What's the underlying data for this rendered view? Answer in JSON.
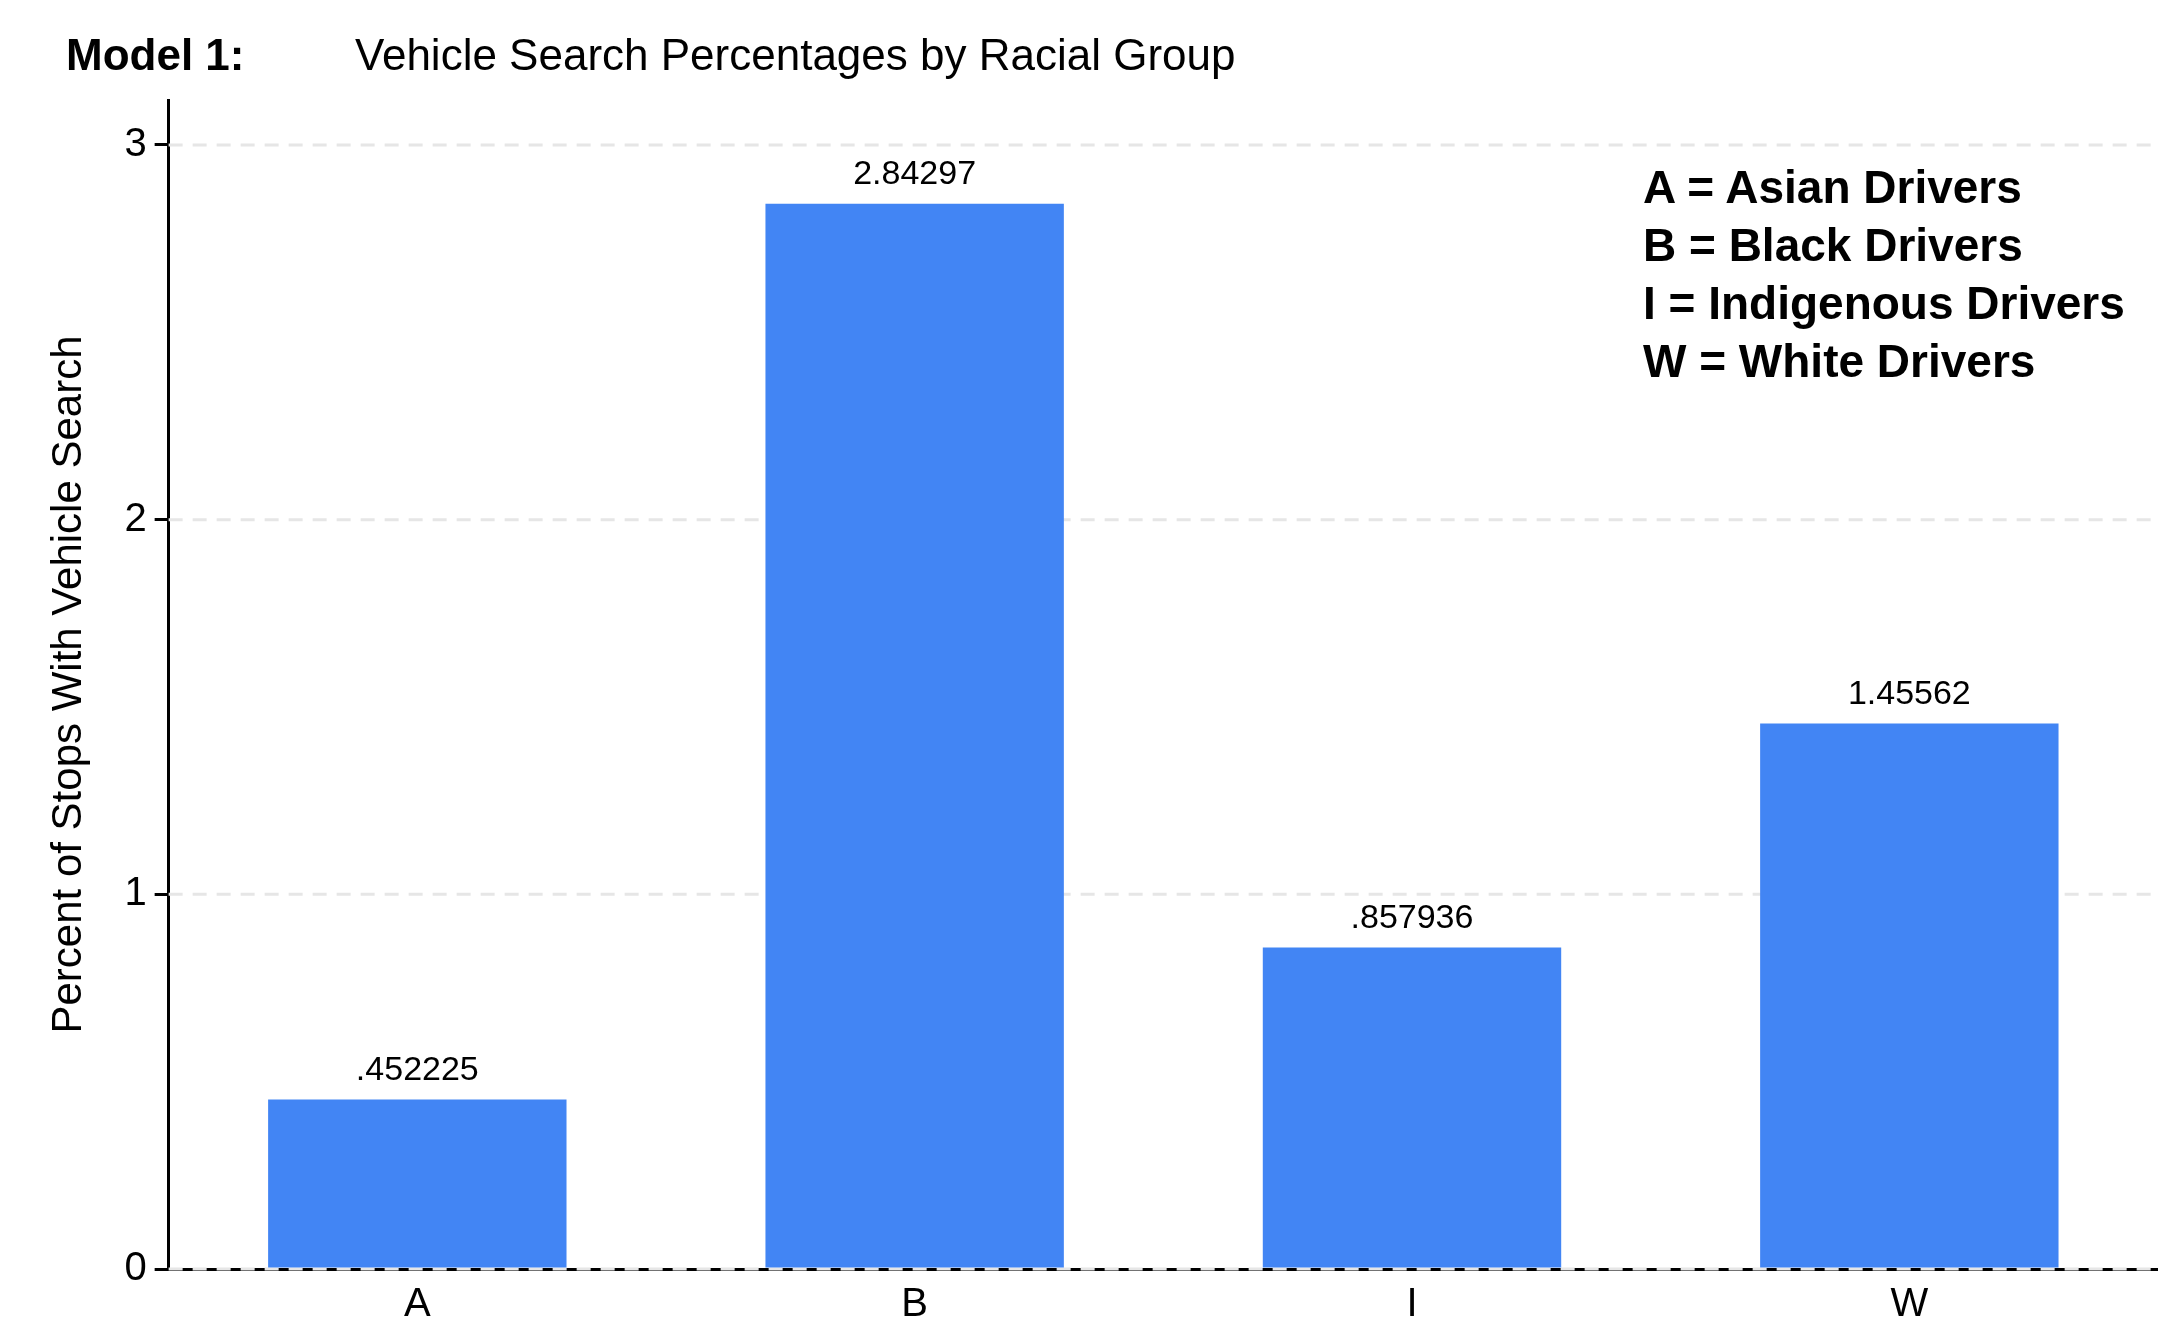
{
  "chart_data": {
    "type": "bar",
    "title": "Model 1:",
    "subtitle": "Vehicle Search Percentages by Racial Group",
    "ylabel": "Percent of Stops With Vehicle Search",
    "categories": [
      "A",
      "B",
      "I",
      "W"
    ],
    "values": [
      0.452225,
      2.84297,
      0.857936,
      1.45562
    ],
    "value_labels": [
      ".452225",
      "2.84297",
      ".857936",
      "1.45562"
    ],
    "color": "#4285f4",
    "ylim": [
      0,
      3.12
    ],
    "yticks": [
      0,
      1,
      2,
      3
    ],
    "grid": "y",
    "legend": false,
    "annotations": [
      "A = Asian Drivers",
      "B = Black Drivers",
      "I = Indigenous Drivers",
      "W = White Drivers"
    ]
  }
}
